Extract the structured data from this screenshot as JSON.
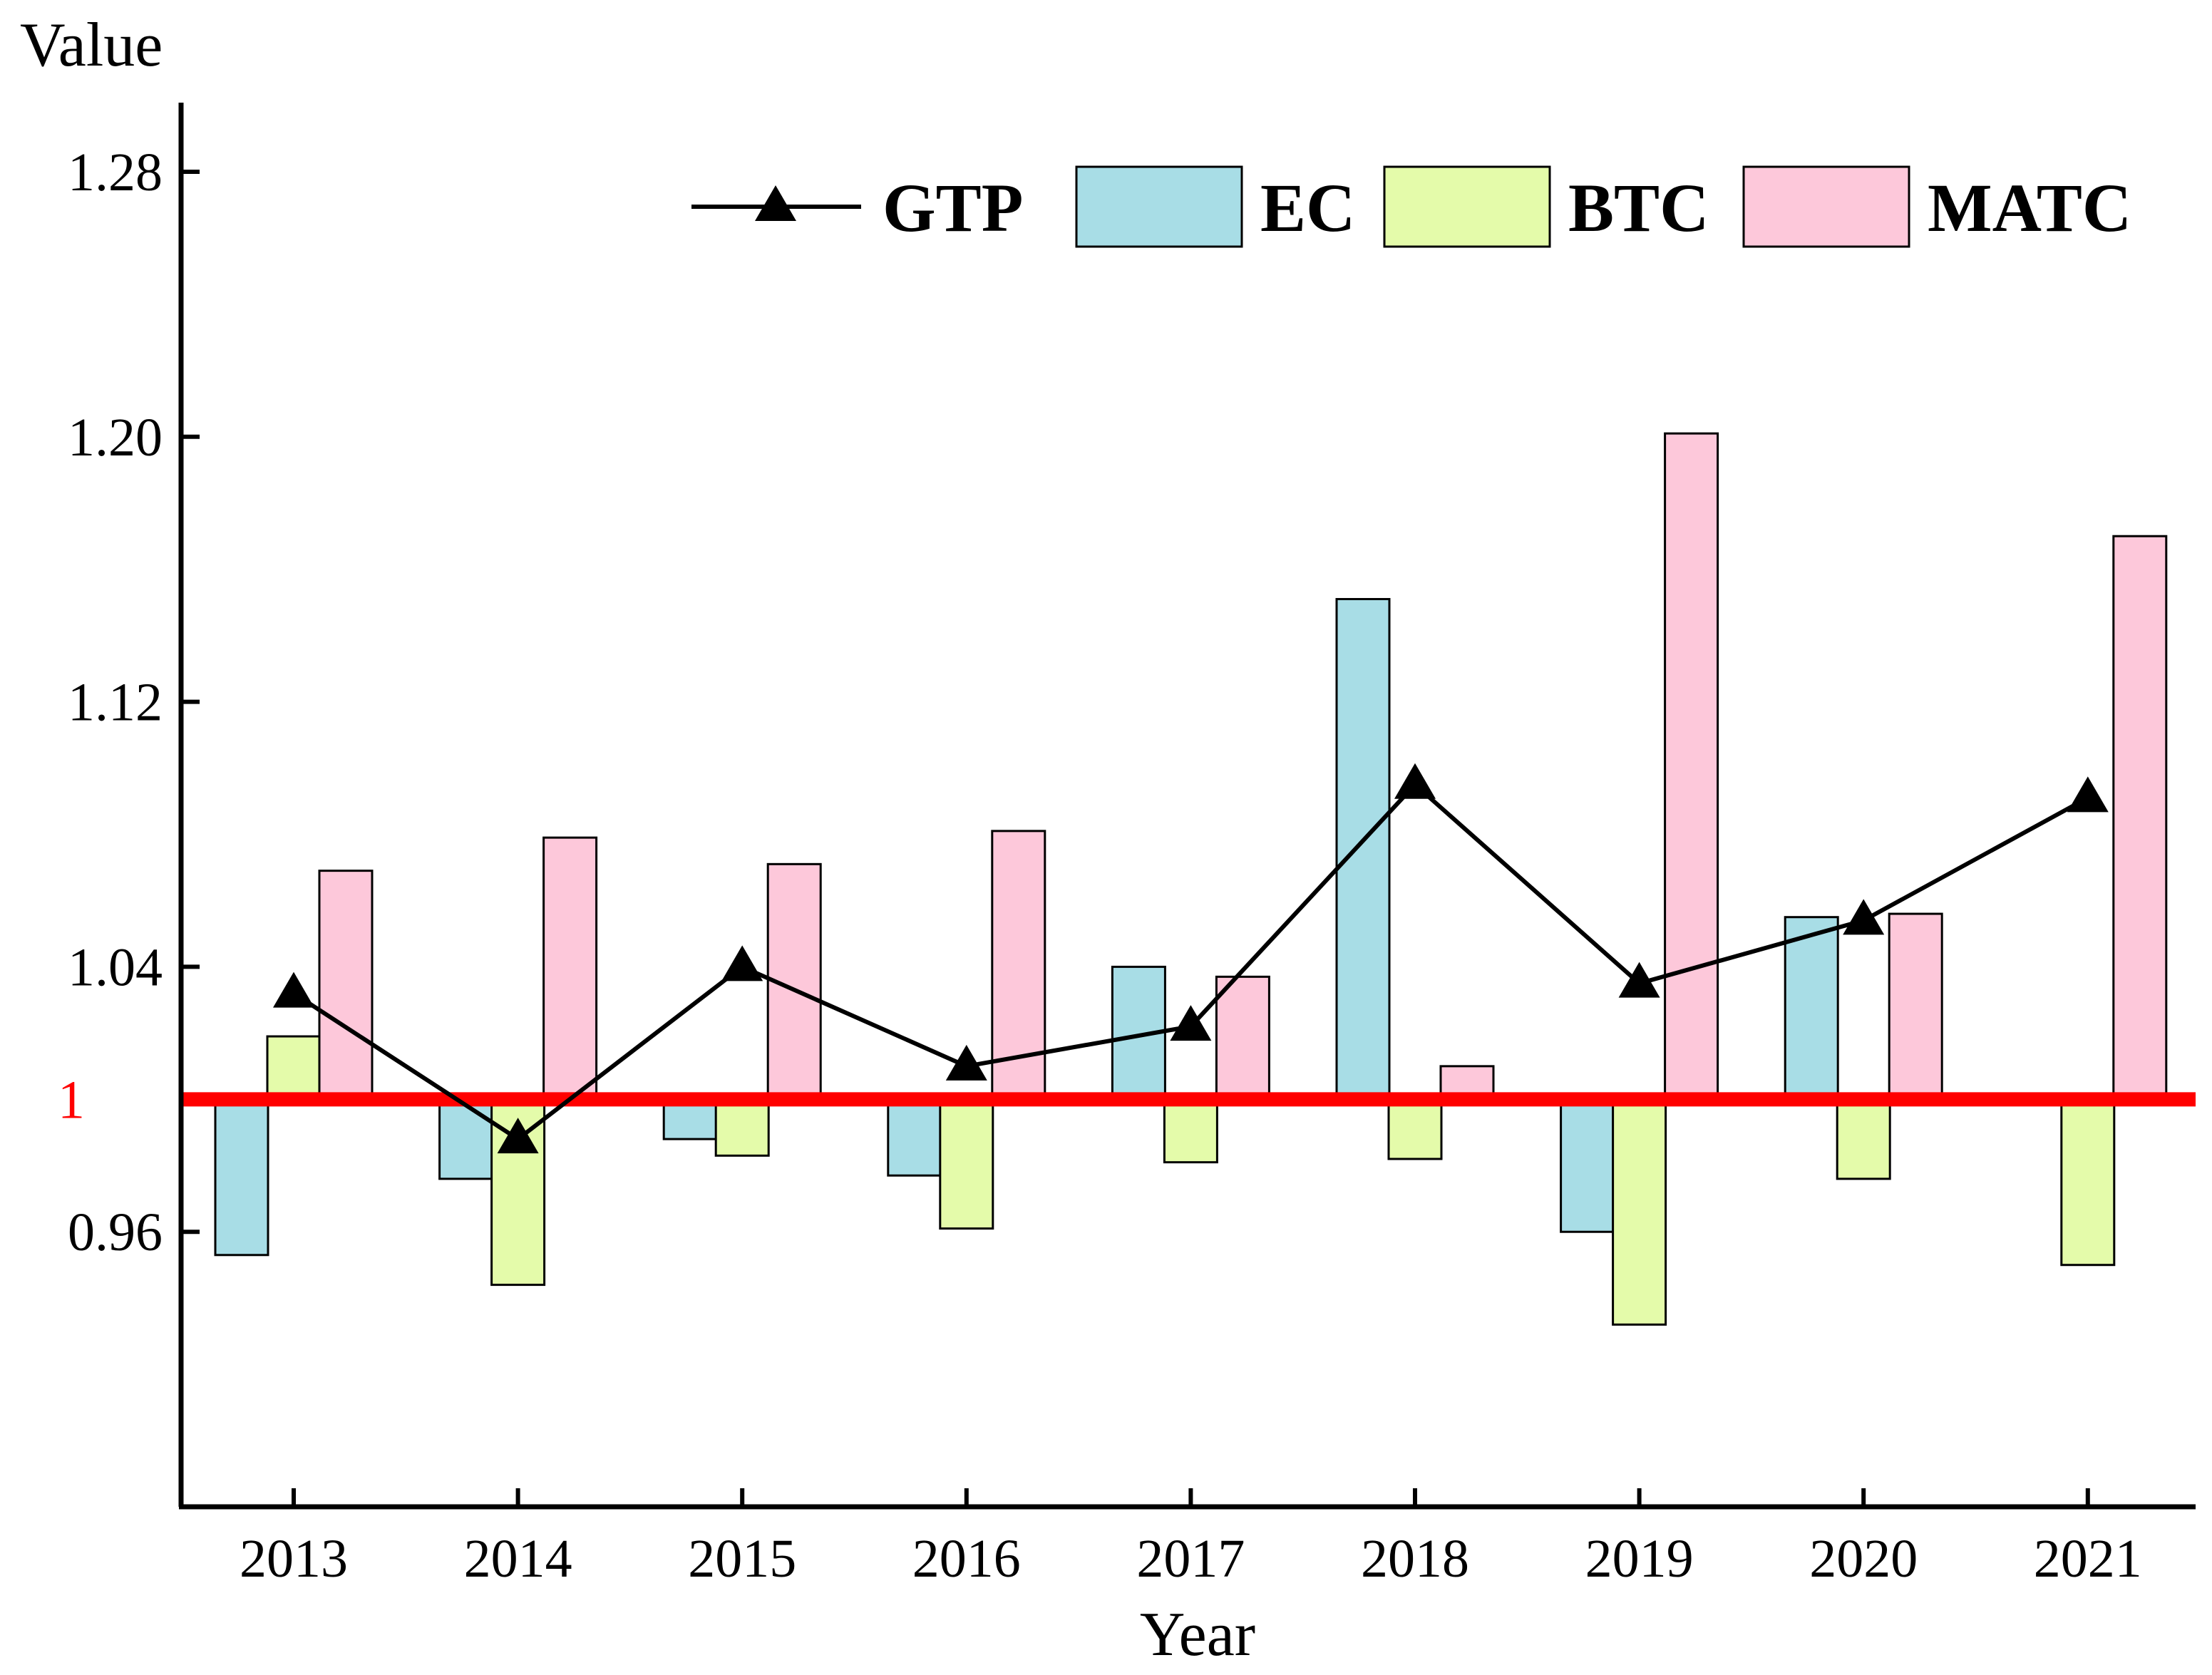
{
  "chart_data": {
    "type": "bar",
    "title": "",
    "xlabel": "Year",
    "ylabel": "Value",
    "ylim": [
      0.877,
      1.3
    ],
    "yticks": [
      "0.96",
      "1.04",
      "1.12",
      "1.20",
      "1.28"
    ],
    "yticks_values": [
      0.96,
      1.04,
      1.12,
      1.2,
      1.28
    ],
    "reference_line": {
      "value": 1,
      "label": "1",
      "color": "#ff0000"
    },
    "categories": [
      "2013",
      "2014",
      "2015",
      "2016",
      "2017",
      "2018",
      "2019",
      "2020",
      "2021"
    ],
    "series": [
      {
        "name": "EC",
        "type": "bar",
        "color": "#a8dde6",
        "values": [
          0.953,
          0.976,
          0.988,
          0.977,
          1.04,
          1.151,
          0.96,
          1.055,
          1.0
        ]
      },
      {
        "name": "BTC",
        "type": "bar",
        "color": "#e4fbaa",
        "values": [
          1.019,
          0.944,
          0.983,
          0.961,
          0.981,
          0.982,
          0.932,
          0.976,
          0.95
        ]
      },
      {
        "name": "MATC",
        "type": "bar",
        "color": "#fdc8da",
        "values": [
          1.069,
          1.079,
          1.071,
          1.081,
          1.037,
          1.01,
          1.201,
          1.056,
          1.17
        ]
      },
      {
        "name": "GTP",
        "type": "line",
        "color": "#000000",
        "values": [
          1.032,
          0.988,
          1.04,
          1.01,
          1.022,
          1.095,
          1.035,
          1.054,
          1.091
        ]
      }
    ],
    "legend": {
      "position": "top-right",
      "order": [
        "GTP",
        "EC",
        "BTC",
        "MATC"
      ]
    }
  }
}
